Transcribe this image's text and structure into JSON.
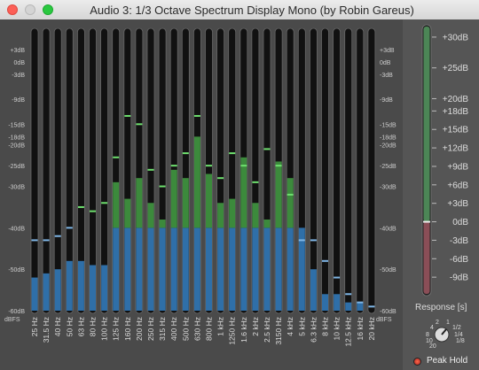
{
  "window": {
    "title": "Audio 3: 1/3 Octave Spectrum Display Mono (by Robin Gareus)"
  },
  "scale": {
    "left_labels": [
      "+3dB",
      "0dB",
      "-3dB",
      "-9dB",
      "-15dB",
      "-18dB",
      "-20dB",
      "-25dB",
      "-30dB",
      "-40dB",
      "-50dB",
      "-60dB"
    ],
    "right_labels": [
      "+3dB",
      "0dB",
      "-3dB",
      "-9dB",
      "-15dB",
      "-18dB",
      "-20dB",
      "-25dB",
      "-30dB",
      "-40dB",
      "-50dB",
      "-60dB"
    ],
    "unit": "dBFS"
  },
  "chart_data": {
    "type": "bar",
    "title": "",
    "xlabel": "",
    "ylabel": "dBFS",
    "ylim": [
      -60,
      6
    ],
    "categories": [
      "25 Hz",
      "31.5 Hz",
      "40 Hz",
      "50 Hz",
      "63 Hz",
      "80 Hz",
      "100 Hz",
      "125 Hz",
      "160 Hz",
      "200 Hz",
      "250 Hz",
      "315 Hz",
      "400 Hz",
      "500 Hz",
      "630 Hz",
      "800 Hz",
      "1 kHz",
      "1250 Hz",
      "1.6 kHz",
      "2 kHz",
      "2.5 kHz",
      "3150 Hz",
      "4 kHz",
      "5 kHz",
      "6.3 kHz",
      "8 kHz",
      "10 kHz",
      "12.5 kHz",
      "16 kHz",
      "20 kHz"
    ],
    "series": [
      {
        "values": [
          -52,
          -51,
          -50,
          -48,
          -48,
          -49,
          -49,
          -29,
          -33,
          -28,
          -34,
          -38,
          -26,
          -28,
          -18,
          -27,
          -34,
          -33,
          -23,
          -34,
          -38,
          -24,
          -28,
          -40,
          -50,
          -56,
          -56,
          -58,
          -58,
          -60
        ]
      },
      {
        "values": [
          -43,
          -43,
          -42,
          -40,
          -35,
          -36,
          -34,
          -23,
          -13,
          -15,
          -26,
          -30,
          -25,
          -22,
          -13,
          -25,
          -28,
          -22,
          -25,
          -29,
          -21,
          -25,
          -32,
          -43,
          -43,
          -48,
          -52,
          -56,
          -58,
          -59
        ]
      }
    ]
  },
  "response": {
    "label": "Response [s]",
    "knob_labels": [
      "1/8",
      "1/4",
      "1/2",
      "1",
      "2",
      "4",
      "8",
      "10",
      "20"
    ],
    "level_db": 0,
    "scale_labels": [
      "+30dB",
      "+25dB",
      "+20dB",
      "+18dB",
      "+15dB",
      "+12dB",
      "+9dB",
      "+6dB",
      "+3dB",
      "0dB",
      "-3dB",
      "-6dB",
      "-9dB"
    ]
  },
  "peak_hold": {
    "label": "Peak Hold",
    "checked": true
  }
}
